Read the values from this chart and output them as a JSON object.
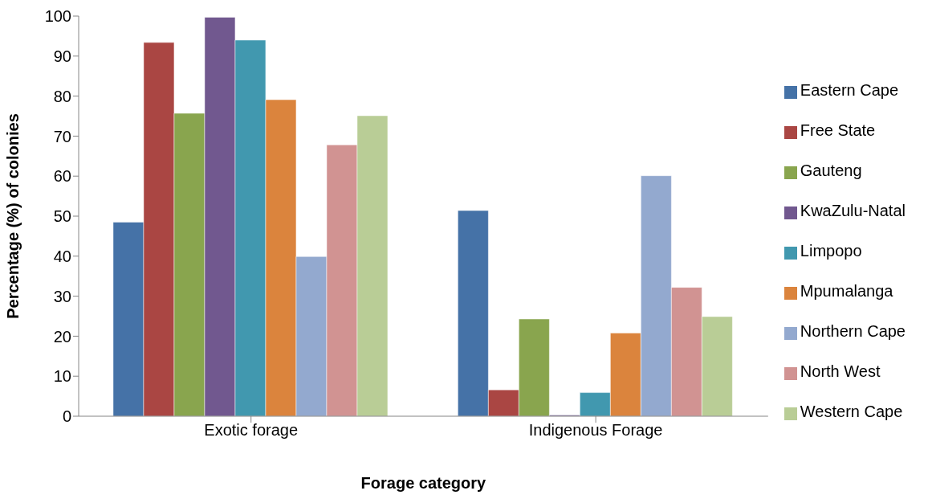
{
  "chart_data": {
    "type": "bar",
    "xlabel": "Forage category",
    "ylabel": "Percentage (%) of colonies",
    "categories": [
      "Exotic forage",
      "Indigenous Forage"
    ],
    "series": [
      {
        "name": "Eastern Cape",
        "color": "#4572a7",
        "values": [
          48.5,
          51.4
        ]
      },
      {
        "name": "Free State",
        "color": "#aa4643",
        "values": [
          93.4,
          6.6
        ]
      },
      {
        "name": "Gauteng",
        "color": "#89a54e",
        "values": [
          75.7,
          24.3
        ]
      },
      {
        "name": "KwaZulu-Natal",
        "color": "#71588f",
        "values": [
          99.7,
          0.3
        ]
      },
      {
        "name": "Limpopo",
        "color": "#4198af",
        "values": [
          94.0,
          5.9
        ]
      },
      {
        "name": "Mpumalanga",
        "color": "#db843d",
        "values": [
          79.1,
          20.8
        ]
      },
      {
        "name": "Northern Cape",
        "color": "#93a9cf",
        "values": [
          39.9,
          60.1
        ]
      },
      {
        "name": "North West",
        "color": "#d19392",
        "values": [
          67.8,
          32.2
        ]
      },
      {
        "name": "Western Cape",
        "color": "#b9cd96",
        "values": [
          75.1,
          24.9
        ]
      }
    ],
    "ylim": [
      0,
      100
    ],
    "yticks": [
      0,
      10,
      20,
      30,
      40,
      50,
      60,
      70,
      80,
      90,
      100
    ],
    "grid": false,
    "legend": "right"
  }
}
